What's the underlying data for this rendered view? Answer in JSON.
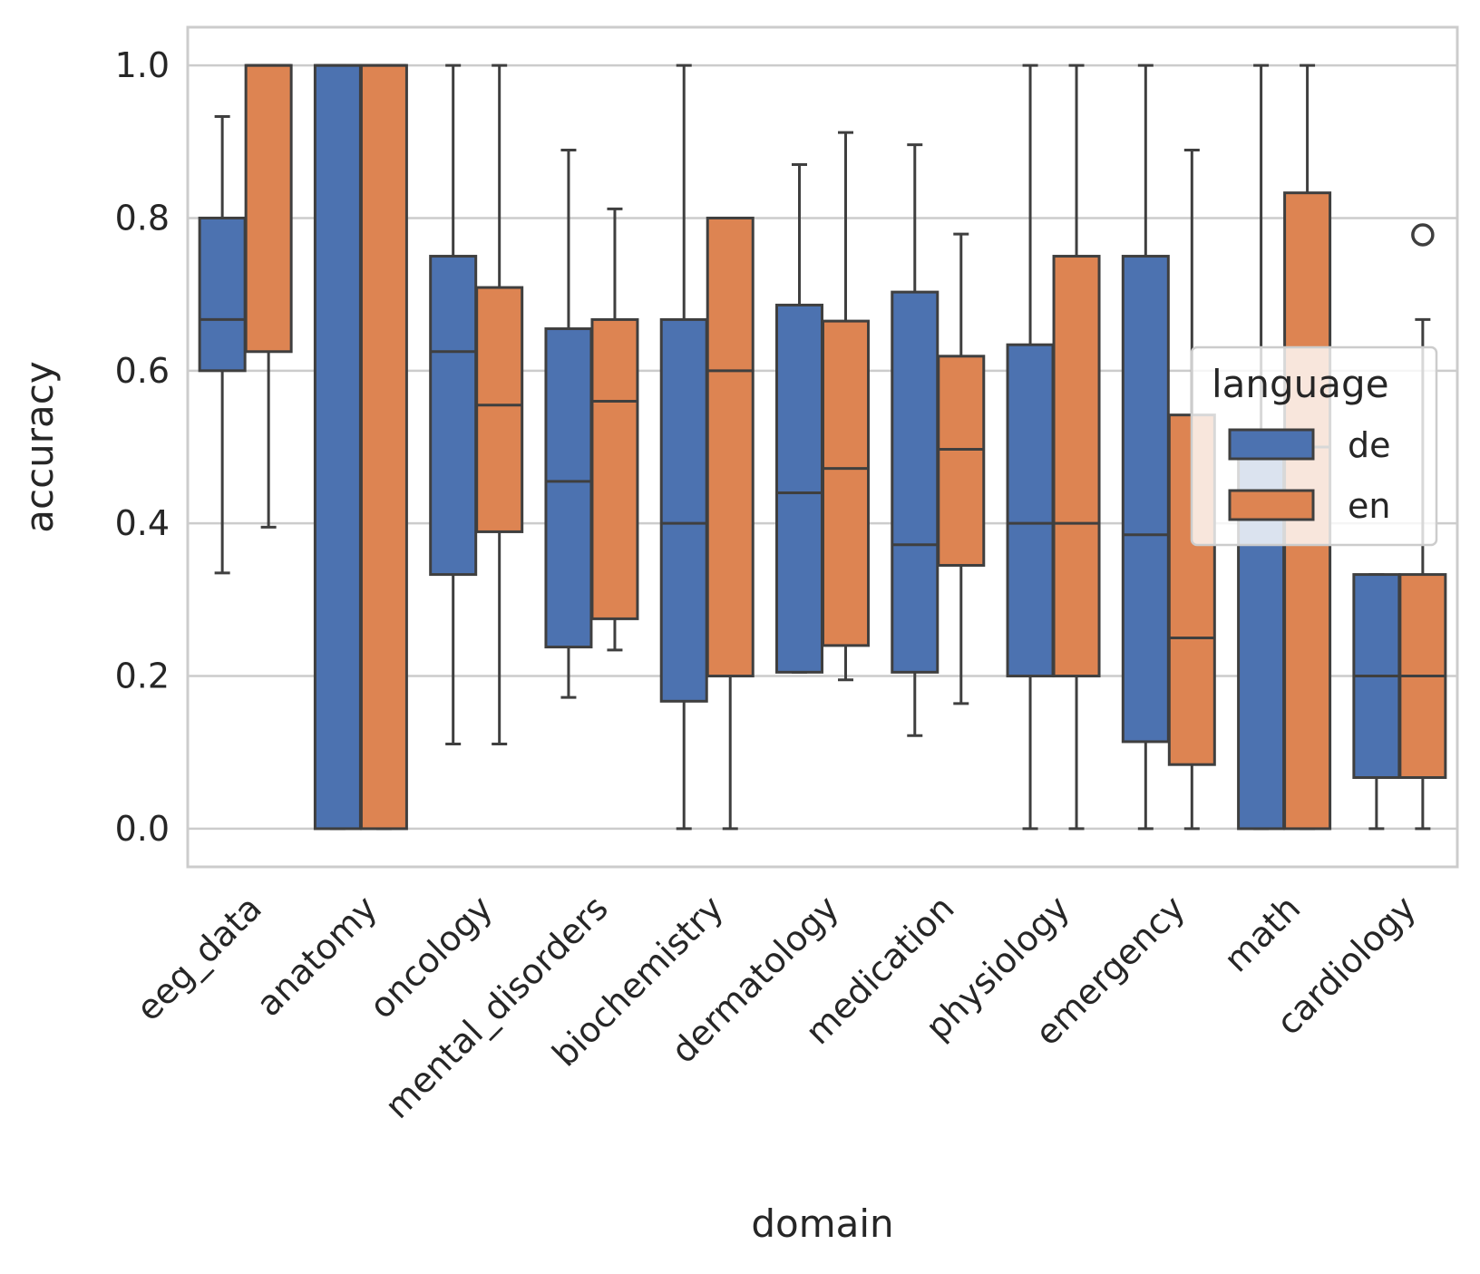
{
  "chart_data": {
    "type": "boxplot",
    "xlabel": "domain",
    "ylabel": "accuracy",
    "ylim": [
      -0.05,
      1.05
    ],
    "yticks": [
      0.0,
      0.2,
      0.4,
      0.6,
      0.8,
      1.0
    ],
    "ytick_labels": [
      "0.0",
      "0.2",
      "0.4",
      "0.6",
      "0.8",
      "1.0"
    ],
    "grid": true,
    "legend": {
      "title": "language",
      "position": "right",
      "entries": [
        "de",
        "en"
      ]
    },
    "categories": [
      "eeg_data",
      "anatomy",
      "oncology",
      "mental_disorders",
      "biochemistry",
      "dermatology",
      "medication",
      "physiology",
      "emergency",
      "math",
      "cardiology"
    ],
    "series": [
      {
        "name": "de",
        "color": "#4c72b0",
        "boxes": [
          {
            "whislo": 0.335,
            "q1": 0.6,
            "med": 0.667,
            "q3": 0.8,
            "whishi": 0.933,
            "fliers": []
          },
          {
            "whislo": 0.0,
            "q1": 0.0,
            "med": 1.0,
            "q3": 1.0,
            "whishi": 1.0,
            "fliers": []
          },
          {
            "whislo": 0.111,
            "q1": 0.333,
            "med": 0.625,
            "q3": 0.75,
            "whishi": 1.0,
            "fliers": []
          },
          {
            "whislo": 0.172,
            "q1": 0.238,
            "med": 0.455,
            "q3": 0.655,
            "whishi": 0.889,
            "fliers": []
          },
          {
            "whislo": 0.0,
            "q1": 0.167,
            "med": 0.4,
            "q3": 0.667,
            "whishi": 1.0,
            "fliers": []
          },
          {
            "whislo": 0.205,
            "q1": 0.205,
            "med": 0.44,
            "q3": 0.686,
            "whishi": 0.87,
            "fliers": []
          },
          {
            "whislo": 0.122,
            "q1": 0.205,
            "med": 0.372,
            "q3": 0.703,
            "whishi": 0.896,
            "fliers": []
          },
          {
            "whislo": 0.0,
            "q1": 0.2,
            "med": 0.4,
            "q3": 0.634,
            "whishi": 1.0,
            "fliers": []
          },
          {
            "whislo": 0.0,
            "q1": 0.114,
            "med": 0.385,
            "q3": 0.75,
            "whishi": 1.0,
            "fliers": []
          },
          {
            "whislo": 0.0,
            "q1": 0.0,
            "med": 0.5,
            "q3": 0.5,
            "whishi": 1.0,
            "fliers": []
          },
          {
            "whislo": 0.0,
            "q1": 0.067,
            "med": 0.2,
            "q3": 0.333,
            "whishi": 0.333,
            "fliers": []
          }
        ]
      },
      {
        "name": "en",
        "color": "#dd8452",
        "boxes": [
          {
            "whislo": 0.395,
            "q1": 0.625,
            "med": 1.0,
            "q3": 1.0,
            "whishi": 1.0,
            "fliers": []
          },
          {
            "whislo": 0.0,
            "q1": 0.0,
            "med": 1.0,
            "q3": 1.0,
            "whishi": 1.0,
            "fliers": []
          },
          {
            "whislo": 0.111,
            "q1": 0.389,
            "med": 0.555,
            "q3": 0.709,
            "whishi": 1.0,
            "fliers": []
          },
          {
            "whislo": 0.234,
            "q1": 0.275,
            "med": 0.56,
            "q3": 0.667,
            "whishi": 0.812,
            "fliers": []
          },
          {
            "whislo": 0.0,
            "q1": 0.2,
            "med": 0.6,
            "q3": 0.8,
            "whishi": 0.8,
            "fliers": []
          },
          {
            "whislo": 0.195,
            "q1": 0.24,
            "med": 0.472,
            "q3": 0.665,
            "whishi": 0.912,
            "fliers": []
          },
          {
            "whislo": 0.164,
            "q1": 0.345,
            "med": 0.497,
            "q3": 0.619,
            "whishi": 0.779,
            "fliers": []
          },
          {
            "whislo": 0.0,
            "q1": 0.2,
            "med": 0.4,
            "q3": 0.75,
            "whishi": 1.0,
            "fliers": []
          },
          {
            "whislo": 0.0,
            "q1": 0.084,
            "med": 0.25,
            "q3": 0.542,
            "whishi": 0.889,
            "fliers": []
          },
          {
            "whislo": 0.0,
            "q1": 0.0,
            "med": 0.5,
            "q3": 0.833,
            "whishi": 1.0,
            "fliers": []
          },
          {
            "whislo": 0.0,
            "q1": 0.067,
            "med": 0.2,
            "q3": 0.333,
            "whishi": 0.667,
            "fliers": [
              0.778
            ]
          }
        ]
      }
    ]
  }
}
